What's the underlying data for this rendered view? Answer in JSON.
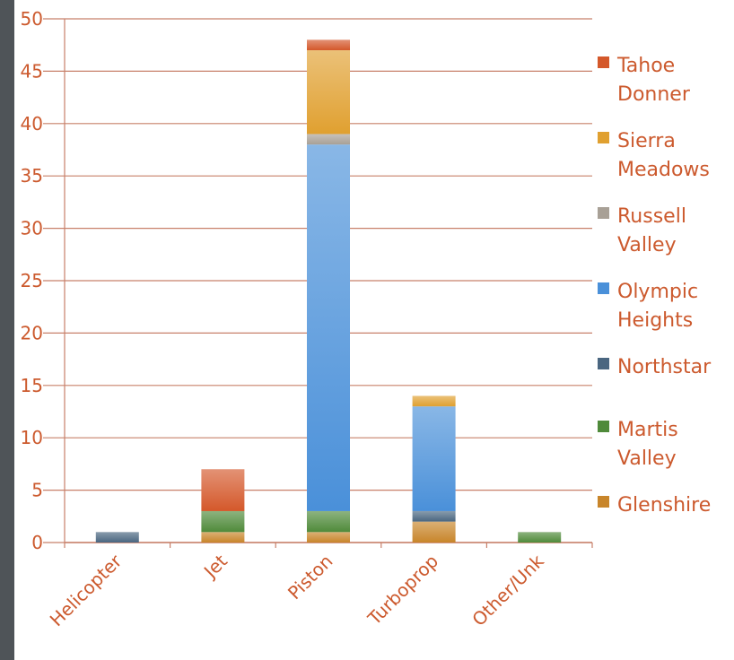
{
  "chart_data": {
    "type": "bar",
    "stacked": true,
    "title": "",
    "xlabel": "",
    "ylabel": "",
    "ylim": [
      0,
      50
    ],
    "yticks": [
      0,
      5,
      10,
      15,
      20,
      25,
      30,
      35,
      40,
      45,
      50
    ],
    "grid": "horizontal",
    "legend_position": "right",
    "categories": [
      "Helicopter",
      "Jet",
      "Piston",
      "Turboprop",
      "Other/Unk"
    ],
    "series": [
      {
        "name": "Glenshire",
        "color": "#c8852a",
        "values": [
          0,
          1,
          1,
          2,
          0
        ]
      },
      {
        "name": "Martis Valley",
        "color": "#4f8a3a",
        "values": [
          0,
          2,
          2,
          0,
          1
        ]
      },
      {
        "name": "Northstar",
        "color": "#4a6680",
        "values": [
          1,
          0,
          0,
          1,
          0
        ]
      },
      {
        "name": "Olympic Heights",
        "color": "#4a90d9",
        "values": [
          0,
          0,
          35,
          10,
          0
        ]
      },
      {
        "name": "Russell Valley",
        "color": "#a8a096",
        "values": [
          0,
          0,
          1,
          0,
          0
        ]
      },
      {
        "name": "Sierra Meadows",
        "color": "#e0a030",
        "values": [
          0,
          0,
          8,
          1,
          0
        ]
      },
      {
        "name": "Tahoe Donner",
        "color": "#d4582a",
        "values": [
          0,
          4,
          1,
          0,
          0
        ]
      }
    ],
    "legend_lines": [
      {
        "series": "Tahoe Donner",
        "lines": [
          "Tahoe",
          "Donner"
        ]
      },
      {
        "series": "Sierra Meadows",
        "lines": [
          "Sierra",
          "Meadows"
        ]
      },
      {
        "series": "Russell Valley",
        "lines": [
          "Russell",
          "Valley"
        ]
      },
      {
        "series": "Olympic Heights",
        "lines": [
          "Olympic",
          "Heights"
        ]
      },
      {
        "series": "Northstar",
        "lines": [
          "Northstar"
        ]
      },
      {
        "series": "Martis Valley",
        "lines": [
          "Martis",
          "Valley"
        ]
      },
      {
        "series": "Glenshire",
        "lines": [
          "Glenshire"
        ]
      }
    ],
    "axis_color": "#c8806a",
    "label_color": "#cc5a2e"
  }
}
